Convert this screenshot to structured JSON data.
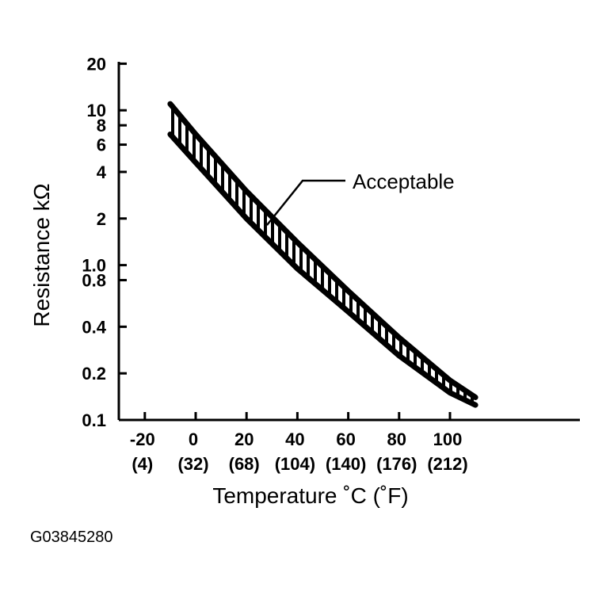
{
  "chart_data": {
    "type": "area",
    "xlabel": "Temperature ˚C (˚F)",
    "ylabel": "Resistance kΩ",
    "y_scale": "log",
    "xlim": [
      -30,
      110
    ],
    "ylim": [
      0.1,
      20
    ],
    "x_ticks": [
      {
        "value": -20,
        "label": "-20",
        "sub_label": "(4)"
      },
      {
        "value": 0,
        "label": "0",
        "sub_label": "(32)"
      },
      {
        "value": 20,
        "label": "20",
        "sub_label": "(68)"
      },
      {
        "value": 40,
        "label": "40",
        "sub_label": "(104)"
      },
      {
        "value": 60,
        "label": "60",
        "sub_label": "(140)"
      },
      {
        "value": 80,
        "label": "80",
        "sub_label": "(176)"
      },
      {
        "value": 100,
        "label": "100",
        "sub_label": "(212)"
      }
    ],
    "y_ticks": [
      {
        "value": 20,
        "label": "20"
      },
      {
        "value": 10,
        "label": "10"
      },
      {
        "value": 8,
        "label": "8"
      },
      {
        "value": 6,
        "label": "6"
      },
      {
        "value": 4,
        "label": "4"
      },
      {
        "value": 2,
        "label": "2"
      },
      {
        "value": 1.0,
        "label": "1.0"
      },
      {
        "value": 0.8,
        "label": "0.8"
      },
      {
        "value": 0.4,
        "label": "0.4"
      },
      {
        "value": 0.2,
        "label": "0.2"
      },
      {
        "value": 0.1,
        "label": "0.1"
      }
    ],
    "grid": false,
    "series": [
      {
        "name": "Acceptable",
        "upper": {
          "x": [
            -10,
            0,
            20,
            40,
            60,
            80,
            100,
            110
          ],
          "y": [
            11,
            7,
            3.0,
            1.4,
            0.68,
            0.34,
            0.18,
            0.14
          ]
        },
        "lower": {
          "x": [
            -10,
            0,
            20,
            40,
            60,
            80,
            100,
            110
          ],
          "y": [
            7,
            4.6,
            2.0,
            0.95,
            0.5,
            0.26,
            0.15,
            0.125
          ]
        }
      }
    ],
    "annotations": [
      {
        "text": "Acceptable",
        "points_to_x": 28
      }
    ]
  },
  "figure_id": "G03845280"
}
